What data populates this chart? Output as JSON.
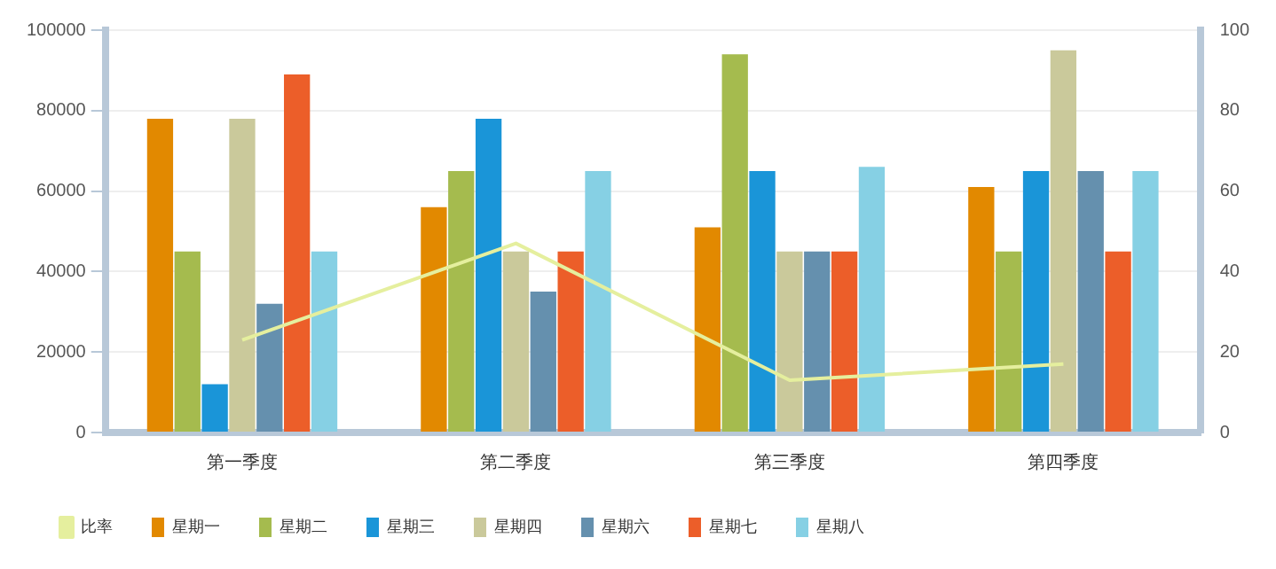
{
  "chart_data": {
    "type": "bar",
    "categories": [
      "第一季度",
      "第二季度",
      "第三季度",
      "第四季度"
    ],
    "series": [
      {
        "name": "星期一",
        "color": "#e28900",
        "values": [
          78000,
          56000,
          51000,
          61000
        ]
      },
      {
        "name": "星期二",
        "color": "#a5bb4e",
        "values": [
          45000,
          65000,
          94000,
          45000
        ]
      },
      {
        "name": "星期三",
        "color": "#1a95d8",
        "values": [
          12000,
          78000,
          65000,
          65000
        ]
      },
      {
        "name": "星期四",
        "color": "#cac99b",
        "values": [
          78000,
          45000,
          45000,
          95000
        ]
      },
      {
        "name": "星期六",
        "color": "#6590ae",
        "values": [
          32000,
          35000,
          45000,
          65000
        ]
      },
      {
        "name": "星期七",
        "color": "#ec5e29",
        "values": [
          89000,
          45000,
          45000,
          45000
        ]
      },
      {
        "name": "星期八",
        "color": "#86d0e4",
        "values": [
          45000,
          65000,
          66000,
          65000
        ]
      },
      {
        "name": "比率",
        "type": "line",
        "axis": "y2",
        "color": "#e5ef9e",
        "values": [
          23,
          47,
          13,
          17
        ]
      }
    ],
    "ylim": [
      0,
      100000
    ],
    "yticks": [
      0,
      20000,
      40000,
      60000,
      80000,
      100000
    ],
    "y2lim": [
      0,
      100
    ],
    "y2ticks": [
      0,
      20,
      40,
      60,
      80,
      100
    ],
    "grid": "y",
    "legend": "bottom left",
    "marker": "none"
  }
}
